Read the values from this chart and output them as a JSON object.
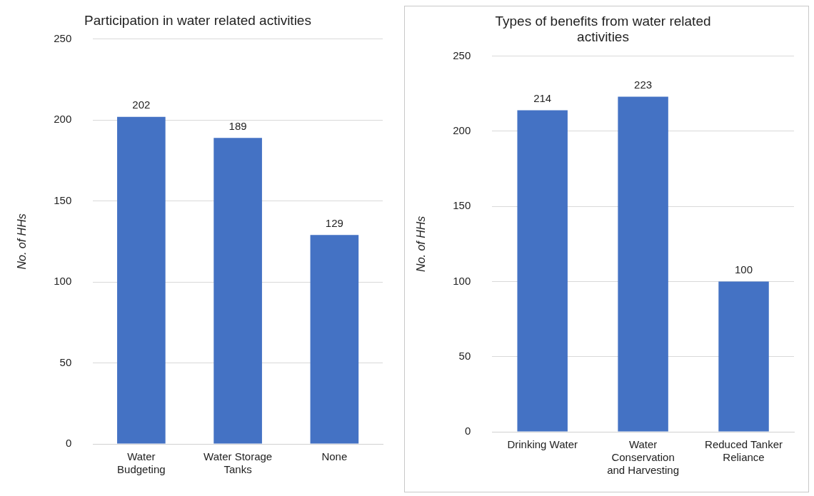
{
  "chart_data": [
    {
      "type": "bar",
      "title": "Participation in water related activities",
      "ylabel": "No. of HHs",
      "categories": [
        "Water Budgeting",
        "Water Storage Tanks",
        "None"
      ],
      "values": [
        202,
        189,
        129
      ],
      "color": "#4472c4",
      "ylim": [
        0,
        250
      ],
      "yticks": [
        0,
        50,
        100,
        150,
        200,
        250
      ],
      "grid": "y",
      "data_labels": true,
      "legend": false
    },
    {
      "type": "bar",
      "title": "Types of benefits from water related activities",
      "ylabel": "No. of HHs",
      "categories": [
        "Drinking Water",
        "Water Conservation and Harvesting",
        "Reduced Tanker Reliance"
      ],
      "values": [
        214,
        223,
        100
      ],
      "color": "#4472c4",
      "ylim": [
        0,
        250
      ],
      "yticks": [
        0,
        50,
        100,
        150,
        200,
        250
      ],
      "grid": "y",
      "data_labels": true,
      "legend": false
    }
  ]
}
